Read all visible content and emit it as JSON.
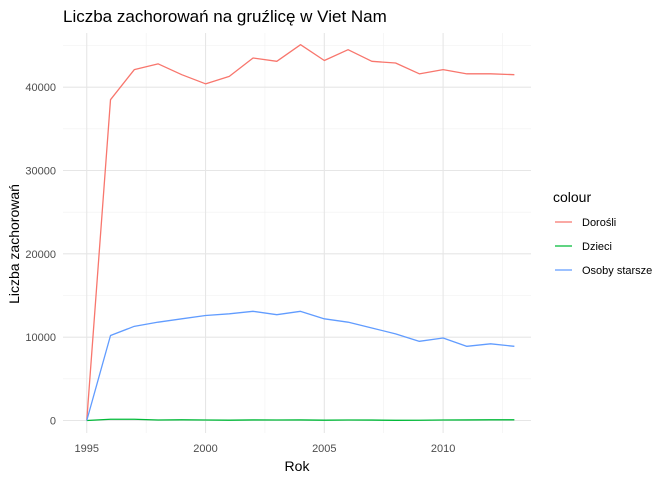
{
  "chart_data": {
    "type": "line",
    "title": "Liczba zachorowań na gruźlicę w Viet Nam",
    "xlabel": "Rok",
    "ylabel": "Liczba zachorowań",
    "xlim": [
      1994.0,
      2013.7
    ],
    "ylim": [
      -1500,
      46500
    ],
    "x_ticks": [
      1995,
      2000,
      2005,
      2010
    ],
    "x_minor_ticks": [
      1997.5,
      2002.5,
      2007.5,
      2012.5
    ],
    "y_ticks": [
      0,
      10000,
      20000,
      30000,
      40000
    ],
    "y_tick_labels": [
      "0",
      "10000",
      "20000",
      "30000",
      "40000"
    ],
    "y_minor_ticks": [
      5000,
      15000,
      25000,
      35000,
      45000
    ],
    "grid": true,
    "legend": {
      "title": "colour",
      "position": "right"
    },
    "x": [
      1995,
      1996,
      1997,
      1998,
      1999,
      2000,
      2001,
      2002,
      2003,
      2004,
      2005,
      2006,
      2007,
      2008,
      2009,
      2010,
      2011,
      2012,
      2013
    ],
    "series": [
      {
        "name": "Dorośli",
        "color": "#F8766D",
        "values": [
          0,
          38500,
          42100,
          42800,
          41500,
          40400,
          41300,
          43500,
          43100,
          45100,
          43200,
          44500,
          43100,
          42900,
          41600,
          42100,
          41600,
          41600,
          41500
        ]
      },
      {
        "name": "Dzieci",
        "color": "#00BA38",
        "values": [
          0,
          150,
          150,
          60,
          80,
          60,
          40,
          70,
          60,
          70,
          40,
          60,
          50,
          20,
          30,
          60,
          70,
          80,
          80
        ]
      },
      {
        "name": "Osoby starsze",
        "color": "#619CFF",
        "values": [
          0,
          10200,
          11300,
          11800,
          12200,
          12600,
          12800,
          13100,
          12700,
          13100,
          12200,
          11800,
          11100,
          10400,
          9500,
          9900,
          8900,
          9200,
          8900
        ]
      }
    ]
  }
}
